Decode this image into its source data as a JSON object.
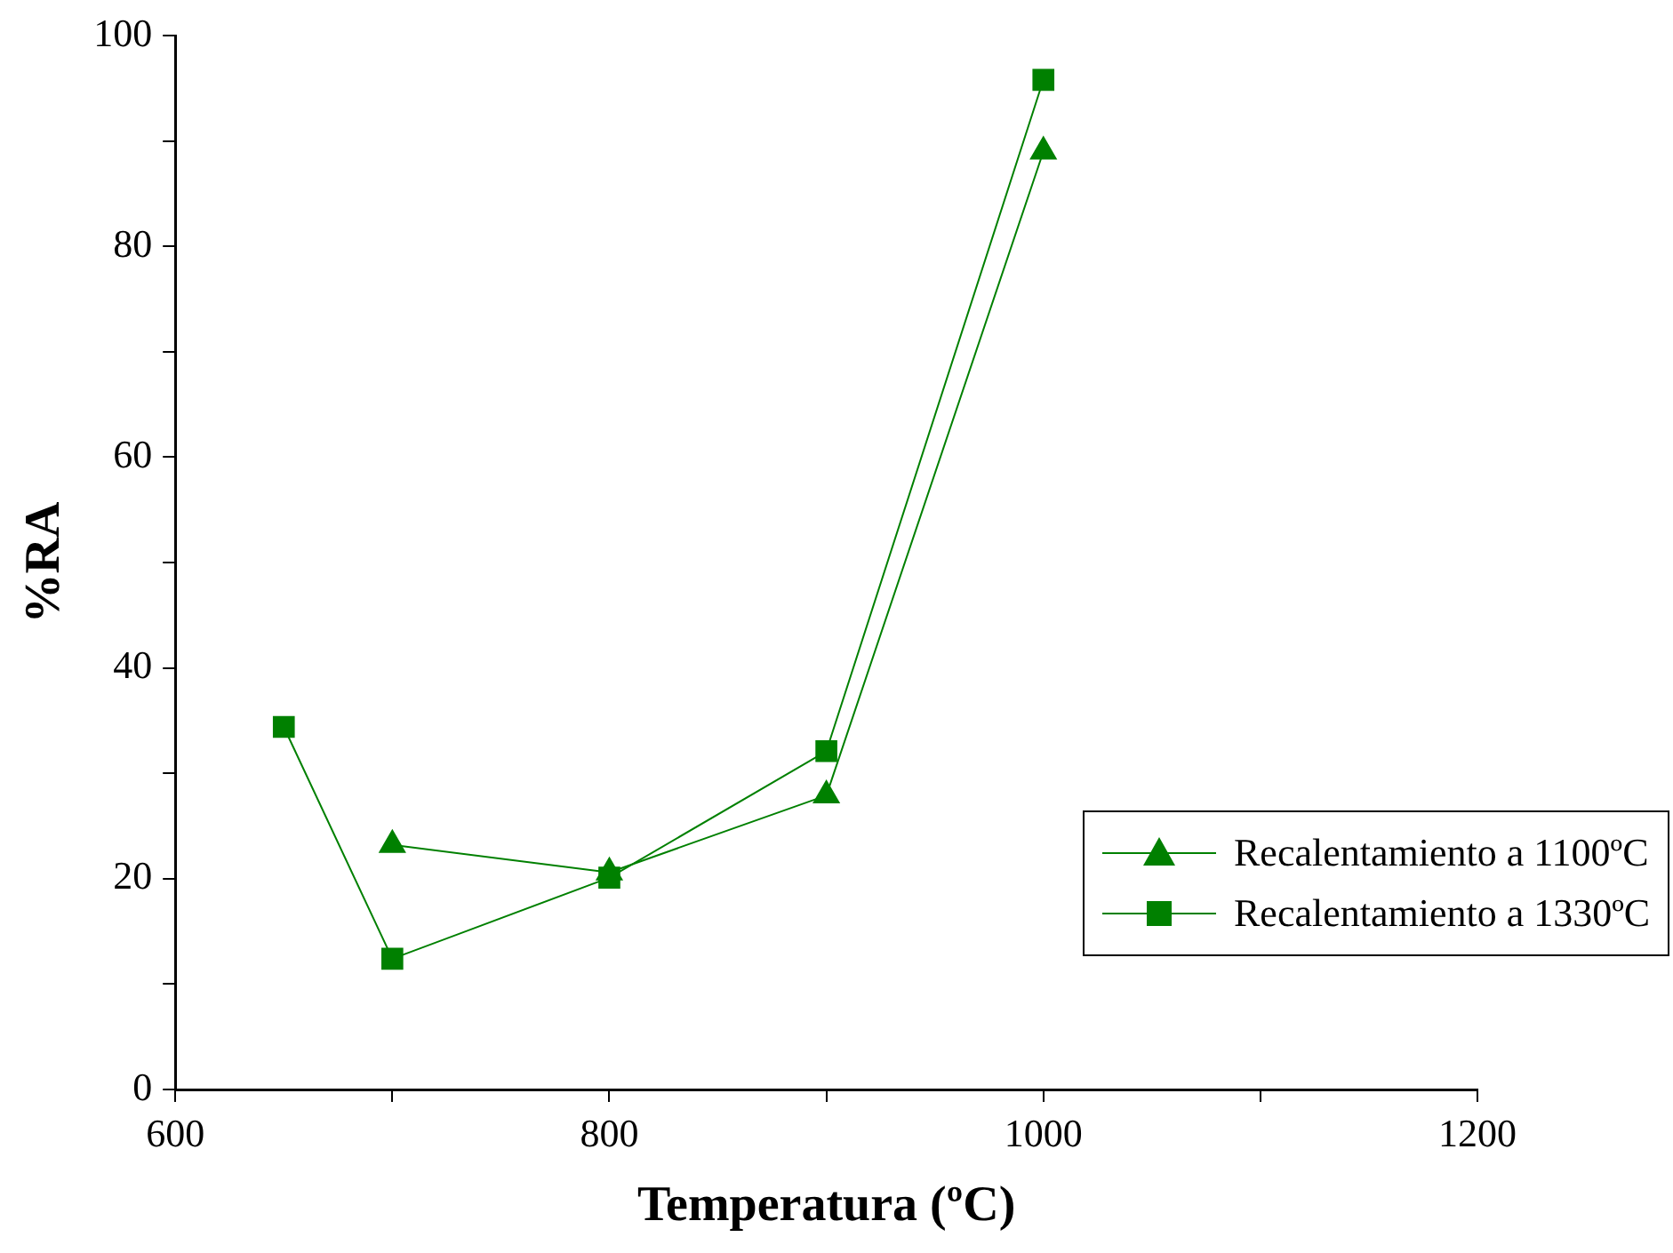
{
  "chart_data": {
    "type": "line",
    "xlabel": "Temperatura (ºC)",
    "ylabel": "%RA",
    "xlim": [
      600,
      1200
    ],
    "xticks": [
      600,
      {
        "value": 700,
        "label": null
      },
      800,
      {
        "value": 900,
        "label": null
      },
      1000,
      {
        "value": 1100,
        "label": null
      },
      1200
    ],
    "ylim": [
      0,
      100
    ],
    "yticks": [
      0,
      {
        "value": 10,
        "label": null
      },
      20,
      {
        "value": 30,
        "label": null
      },
      40,
      {
        "value": 50,
        "label": null
      },
      60,
      {
        "value": 70,
        "label": null
      },
      80,
      {
        "value": 90,
        "label": null
      },
      100
    ],
    "grid": false,
    "legend": "bottom right",
    "line_style": "solid",
    "series": [
      {
        "name": "Recalentamiento a 1100ºC",
        "color": "#008000",
        "marker": "triangle",
        "x": [
          700,
          800,
          900,
          1000
        ],
        "values": [
          23.2,
          20.6,
          27.9,
          89.0
        ]
      },
      {
        "name": "Recalentamiento a 1330ºC",
        "color": "#008000",
        "marker": "square",
        "x": [
          650,
          700,
          800,
          900,
          1000
        ],
        "values": [
          34.4,
          12.4,
          20.1,
          32.1,
          95.8
        ]
      }
    ]
  }
}
